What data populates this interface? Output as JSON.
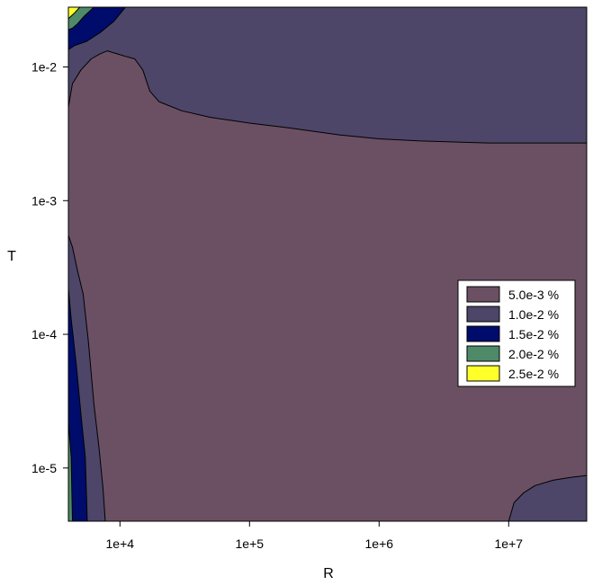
{
  "chart_data": {
    "type": "contour",
    "xlabel": "R",
    "ylabel": "T",
    "x_scale": "log",
    "y_scale": "log",
    "xlim": [
      4000,
      40000000
    ],
    "ylim": [
      4e-06,
      0.028
    ],
    "x_ticks": [
      {
        "value": 10000,
        "label": "1e+4"
      },
      {
        "value": 100000,
        "label": "1e+5"
      },
      {
        "value": 1000000,
        "label": "1e+6"
      },
      {
        "value": 10000000,
        "label": "1e+7"
      }
    ],
    "y_ticks": [
      {
        "value": 0.01,
        "label": "1e-2"
      },
      {
        "value": 0.001,
        "label": "1e-3"
      },
      {
        "value": 0.0001,
        "label": "1e-4"
      },
      {
        "value": 1e-05,
        "label": "1e-5"
      }
    ],
    "levels": [
      {
        "label": "5.0e-3 %",
        "color": "#6b5063"
      },
      {
        "label": "1.0e-2 %",
        "color": "#4d4669"
      },
      {
        "label": "1.5e-2 %",
        "color": "#000c6b"
      },
      {
        "label": "2.0e-2 %",
        "color": "#4e8a67"
      },
      {
        "label": "2.5e-2 %",
        "color": "#ffff2a"
      }
    ],
    "legend_position": "right",
    "regions": [
      {
        "level": 1,
        "points": [
          [
            4000,
            0.028
          ],
          [
            40000000,
            0.028
          ],
          [
            40000000,
            0.0027
          ],
          [
            20000000,
            0.0027
          ],
          [
            7000000,
            0.0027
          ],
          [
            2000000,
            0.0028
          ],
          [
            1000000,
            0.0029
          ],
          [
            500000,
            0.0031
          ],
          [
            200000,
            0.0035
          ],
          [
            100000,
            0.0038
          ],
          [
            50000,
            0.0042
          ],
          [
            30000,
            0.0047
          ],
          [
            20000,
            0.0055
          ],
          [
            17000,
            0.0066
          ],
          [
            15000,
            0.0095
          ],
          [
            13000,
            0.0115
          ],
          [
            11000,
            0.012
          ],
          [
            8000,
            0.0132
          ],
          [
            7000,
            0.0125
          ],
          [
            6000,
            0.0115
          ],
          [
            5000,
            0.0095
          ],
          [
            4300,
            0.0075
          ],
          [
            4000,
            0.005
          ]
        ]
      },
      {
        "level": 1,
        "points": [
          [
            10000000,
            4e-06
          ],
          [
            11000000,
            5.5e-06
          ],
          [
            13000000,
            6.5e-06
          ],
          [
            16000000,
            7.4e-06
          ],
          [
            22000000,
            8.1e-06
          ],
          [
            30000000,
            8.5e-06
          ],
          [
            40000000,
            8.8e-06
          ],
          [
            40000000,
            4e-06
          ]
        ]
      },
      {
        "level": 1,
        "points": [
          [
            4000,
            0.00055
          ],
          [
            4300,
            0.00045
          ],
          [
            4700,
            0.0003
          ],
          [
            5200,
            0.0002
          ],
          [
            5700,
            9e-05
          ],
          [
            6300,
            3e-05
          ],
          [
            6900,
            1.4e-05
          ],
          [
            7400,
            7e-06
          ],
          [
            7700,
            4e-06
          ],
          [
            4000,
            4e-06
          ]
        ]
      },
      {
        "level": 2,
        "points": [
          [
            4000,
            0.028
          ],
          [
            11000,
            0.028
          ],
          [
            9000,
            0.022
          ],
          [
            7000,
            0.018
          ],
          [
            5500,
            0.0155
          ],
          [
            4500,
            0.0145
          ],
          [
            4000,
            0.0135
          ]
        ]
      },
      {
        "level": 2,
        "points": [
          [
            4000,
            0.00022
          ],
          [
            4200,
            0.00013
          ],
          [
            4600,
            6e-05
          ],
          [
            5000,
            2.5e-05
          ],
          [
            5400,
            1.2e-05
          ],
          [
            5600,
            4e-06
          ],
          [
            4000,
            4e-06
          ]
        ]
      },
      {
        "level": 3,
        "points": [
          [
            4000,
            0.028
          ],
          [
            6300,
            0.028
          ],
          [
            5300,
            0.024
          ],
          [
            4700,
            0.021
          ],
          [
            4300,
            0.0195
          ],
          [
            4000,
            0.019
          ]
        ]
      },
      {
        "level": 3,
        "points": [
          [
            4000,
            2.25e-05
          ],
          [
            4200,
            1.2e-05
          ],
          [
            4300,
            4e-06
          ],
          [
            4000,
            4e-06
          ]
        ]
      },
      {
        "level": 4,
        "points": [
          [
            4000,
            0.028
          ],
          [
            4900,
            0.028
          ],
          [
            4400,
            0.025
          ],
          [
            4000,
            0.023
          ]
        ]
      }
    ]
  }
}
